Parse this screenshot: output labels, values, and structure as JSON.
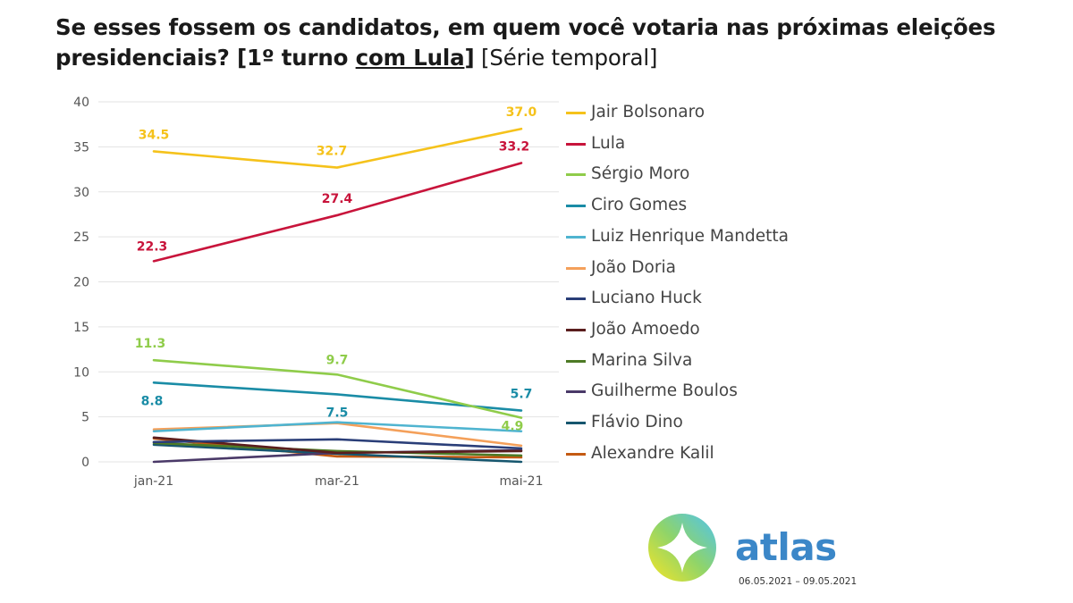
{
  "title": {
    "part1": "Se esses fossem os candidatos, em quem você votaria nas próximas eleições presidenciais? [1º turno ",
    "underlined": "com Lula",
    "part2": "]",
    "suffix": " [Série temporal]"
  },
  "chart_data": {
    "type": "line",
    "x": [
      "jan-21",
      "mar-21",
      "mai-21"
    ],
    "yticks": [
      0,
      5,
      10,
      15,
      20,
      25,
      30,
      35,
      40
    ],
    "ylim": [
      0,
      40
    ],
    "grid": true,
    "legend_position": "right",
    "series": [
      {
        "name": "Jair Bolsonaro",
        "color": "#f5c21b",
        "values": [
          34.5,
          32.7,
          37.0
        ],
        "labels": [
          "34.5",
          "32.7",
          "37.0"
        ]
      },
      {
        "name": "Lula",
        "color": "#c8143b",
        "values": [
          22.3,
          27.4,
          33.2
        ],
        "labels": [
          "22.3",
          "27.4",
          "33.2"
        ]
      },
      {
        "name": "Sérgio Moro",
        "color": "#8fcc4a",
        "values": [
          11.3,
          9.7,
          4.9
        ],
        "labels": [
          "11.3",
          "9.7",
          "4.9"
        ]
      },
      {
        "name": "Ciro Gomes",
        "color": "#1a8ca6",
        "values": [
          8.8,
          7.5,
          5.7
        ],
        "labels": [
          "8.8",
          "7.5",
          "5.7"
        ]
      },
      {
        "name": "Luiz Henrique Mandetta",
        "color": "#4fb4d0",
        "values": [
          3.4,
          4.4,
          3.4
        ],
        "labels": null
      },
      {
        "name": "João Doria",
        "color": "#f4a05a",
        "values": [
          3.6,
          4.3,
          1.8
        ],
        "labels": null
      },
      {
        "name": "Luciano Huck",
        "color": "#2a3e78",
        "values": [
          2.2,
          2.5,
          1.5
        ],
        "labels": null
      },
      {
        "name": "João Amoedo",
        "color": "#5a1e1e",
        "values": [
          2.7,
          1.0,
          1.2
        ],
        "labels": null
      },
      {
        "name": "Marina Silva",
        "color": "#4d7a25",
        "values": [
          2.1,
          1.2,
          0.7
        ],
        "labels": null
      },
      {
        "name": "Guilherme Boulos",
        "color": "#4a3968",
        "values": [
          0.0,
          1.0,
          1.3
        ],
        "labels": null
      },
      {
        "name": "Flávio Dino",
        "color": "#16566e",
        "values": [
          1.9,
          0.9,
          0.0
        ],
        "labels": null
      },
      {
        "name": "Alexandre Kalil",
        "color": "#c45a12",
        "values": [
          2.6,
          0.6,
          0.5
        ],
        "labels": null
      }
    ]
  },
  "brand": {
    "name": "atlas",
    "dates": "06.05.2021 – 09.05.2021"
  }
}
